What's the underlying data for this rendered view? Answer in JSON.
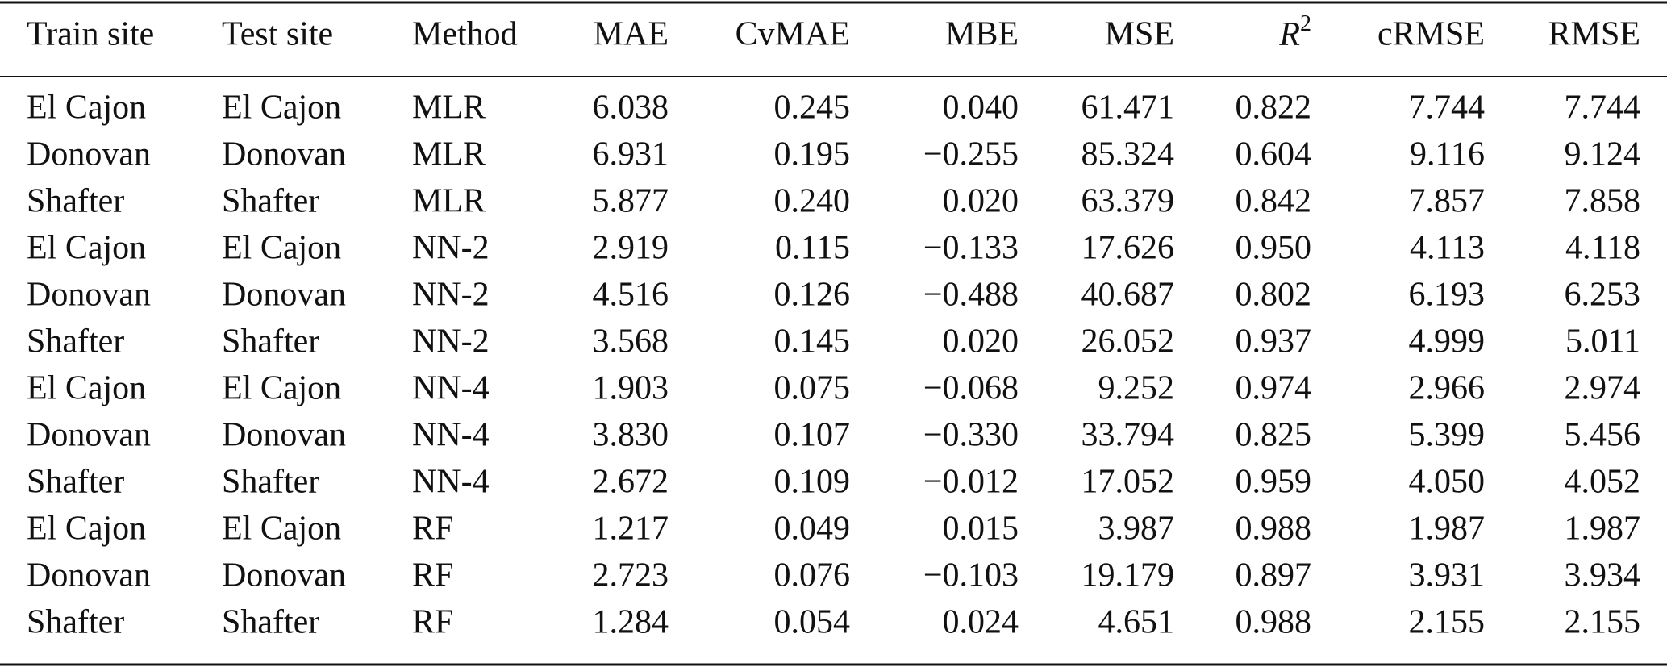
{
  "table": {
    "header": [
      "Train site",
      "Test site",
      "Method",
      "MAE",
      "CvMAE",
      "MBE",
      "MSE",
      {
        "text": "R",
        "sup": "2"
      },
      "cRMSE",
      "RMSE"
    ],
    "rows": [
      [
        "El Cajon",
        "El Cajon",
        "MLR",
        "6.038",
        "0.245",
        "0.040",
        "61.471",
        "0.822",
        "7.744",
        "7.744"
      ],
      [
        "Donovan",
        "Donovan",
        "MLR",
        "6.931",
        "0.195",
        "−0.255",
        "85.324",
        "0.604",
        "9.116",
        "9.124"
      ],
      [
        "Shafter",
        "Shafter",
        "MLR",
        "5.877",
        "0.240",
        "0.020",
        "63.379",
        "0.842",
        "7.857",
        "7.858"
      ],
      [
        "El Cajon",
        "El Cajon",
        "NN-2",
        "2.919",
        "0.115",
        "−0.133",
        "17.626",
        "0.950",
        "4.113",
        "4.118"
      ],
      [
        "Donovan",
        "Donovan",
        "NN-2",
        "4.516",
        "0.126",
        "−0.488",
        "40.687",
        "0.802",
        "6.193",
        "6.253"
      ],
      [
        "Shafter",
        "Shafter",
        "NN-2",
        "3.568",
        "0.145",
        "0.020",
        "26.052",
        "0.937",
        "4.999",
        "5.011"
      ],
      [
        "El Cajon",
        "El Cajon",
        "NN-4",
        "1.903",
        "0.075",
        "−0.068",
        "9.252",
        "0.974",
        "2.966",
        "2.974"
      ],
      [
        "Donovan",
        "Donovan",
        "NN-4",
        "3.830",
        "0.107",
        "−0.330",
        "33.794",
        "0.825",
        "5.399",
        "5.456"
      ],
      [
        "Shafter",
        "Shafter",
        "NN-4",
        "2.672",
        "0.109",
        "−0.012",
        "17.052",
        "0.959",
        "4.050",
        "4.052"
      ],
      [
        "El Cajon",
        "El Cajon",
        "RF",
        "1.217",
        "0.049",
        "0.015",
        "3.987",
        "0.988",
        "1.987",
        "1.987"
      ],
      [
        "Donovan",
        "Donovan",
        "RF",
        "2.723",
        "0.076",
        "−0.103",
        "19.179",
        "0.897",
        "3.931",
        "3.934"
      ],
      [
        "Shafter",
        "Shafter",
        "RF",
        "1.284",
        "0.054",
        "0.024",
        "4.651",
        "0.988",
        "2.155",
        "2.155"
      ]
    ]
  }
}
